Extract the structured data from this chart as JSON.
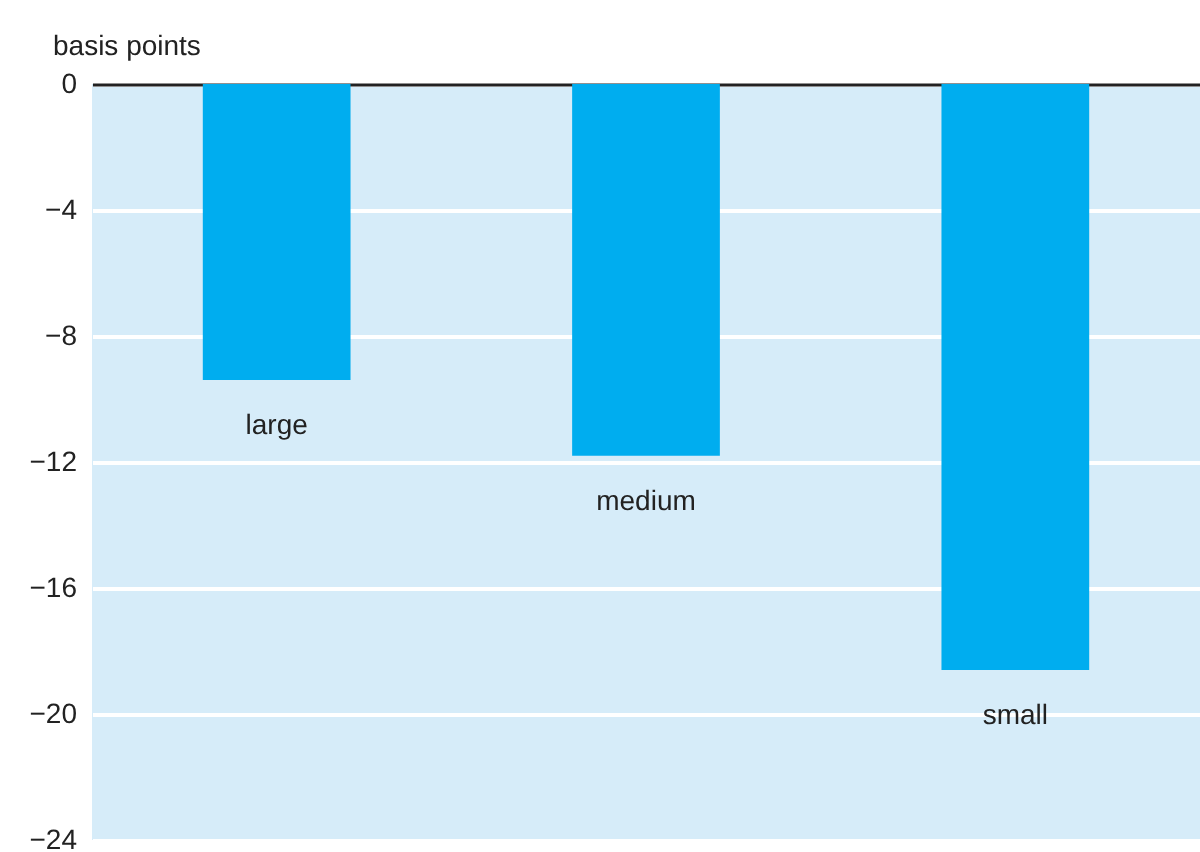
{
  "chart_data": {
    "type": "bar",
    "ylabel": "basis points",
    "categories": [
      "large",
      "medium",
      "small"
    ],
    "values": [
      -9.4,
      -11.8,
      -18.6
    ],
    "color": "#00adef",
    "ylim": [
      -24,
      0
    ],
    "yticks": [
      -24,
      -20,
      -16,
      -12,
      -8,
      -4,
      0
    ],
    "grid": "y"
  }
}
